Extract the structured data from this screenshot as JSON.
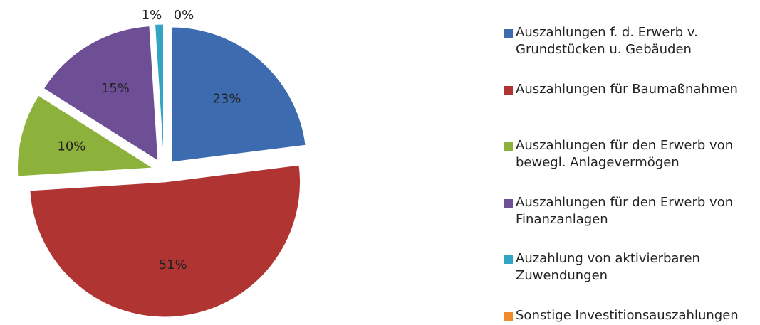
{
  "chart_data": {
    "type": "pie",
    "categories": [
      "Auszahlungen f. d. Erwerb v. Grundstücken u. Gebäuden",
      "Auszahlungen für Baumaßnahmen",
      "Auszahlungen für den Erwerb von bewegl. Anlagevermögen",
      "Auszahlungen für den Erwerb von Finanzanlagen",
      "Auzahlung von aktivierbaren Zuwendungen",
      "Sonstige Investitionsauszahlungen"
    ],
    "values": [
      23,
      51,
      10,
      15,
      1,
      0
    ],
    "value_labels": [
      "23%",
      "51%",
      "10%",
      "15%",
      "1%",
      "0%"
    ],
    "colors": [
      "#3d6bb0",
      "#b03432",
      "#8db23c",
      "#6e4f95",
      "#33a5c4",
      "#f08a2b"
    ],
    "legend": "right"
  }
}
